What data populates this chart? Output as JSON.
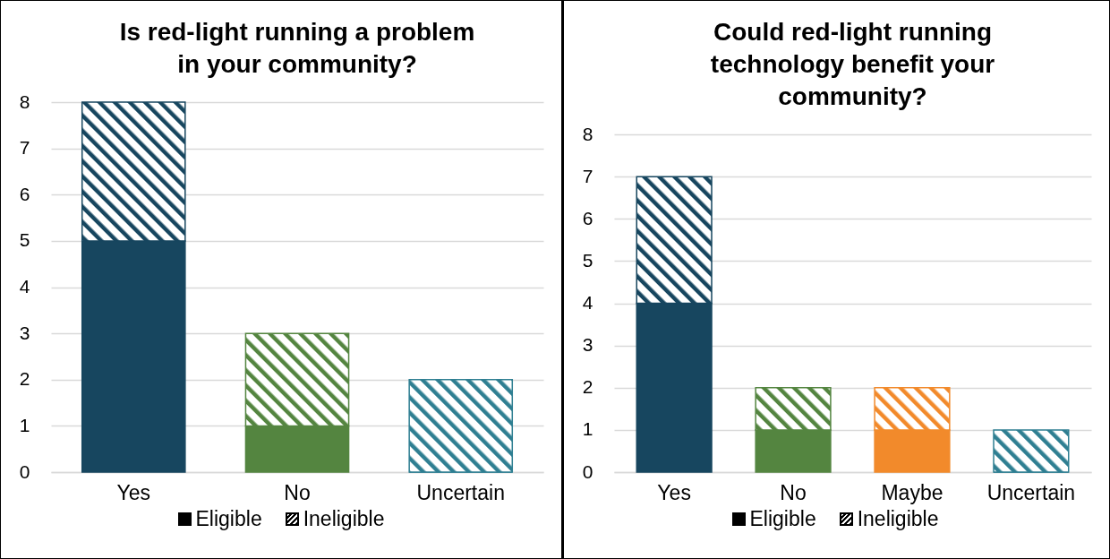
{
  "chart_data": [
    {
      "type": "bar",
      "title": "Is red-light running a problem in your community?",
      "categories": [
        "Yes",
        "No",
        "Uncertain"
      ],
      "stacked": true,
      "ylim": [
        0,
        8
      ],
      "yticks": [
        0,
        1,
        2,
        3,
        4,
        5,
        6,
        7,
        8
      ],
      "grid": "y",
      "legend": "bottom",
      "series": [
        {
          "name": "Eligible",
          "colors": [
            "#17465f",
            "#548540",
            "#2f7f92"
          ],
          "values": [
            5,
            1,
            0
          ]
        },
        {
          "name": "Ineligible",
          "colors": [
            "#17465f",
            "#548540",
            "#2f7f92"
          ],
          "values": [
            3,
            2,
            2
          ]
        }
      ]
    },
    {
      "type": "bar",
      "title": "Could red-light running technology benefit your community?",
      "categories": [
        "Yes",
        "No",
        "Maybe",
        "Uncertain"
      ],
      "stacked": true,
      "ylim": [
        0,
        8
      ],
      "yticks": [
        0,
        1,
        2,
        3,
        4,
        5,
        6,
        7,
        8
      ],
      "grid": "y",
      "legend": "bottom",
      "series": [
        {
          "name": "Eligible",
          "colors": [
            "#17465f",
            "#548540",
            "#f28a2b",
            "#2f7f92"
          ],
          "values": [
            4,
            1,
            1,
            0
          ]
        },
        {
          "name": "Ineligible",
          "colors": [
            "#17465f",
            "#548540",
            "#f28a2b",
            "#2f7f92"
          ],
          "values": [
            3,
            1,
            1,
            1
          ]
        }
      ]
    }
  ]
}
